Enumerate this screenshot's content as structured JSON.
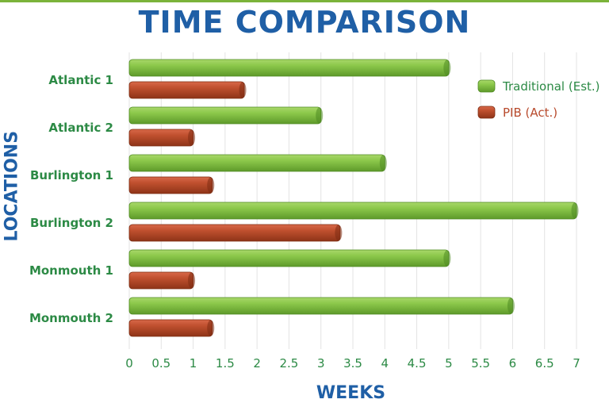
{
  "chart_data": {
    "type": "bar",
    "orientation": "horizontal",
    "title": "TIME COMPARISON",
    "xlabel": "WEEKS",
    "ylabel": "LOCATIONS",
    "categories": [
      "Atlantic 1",
      "Atlantic 2",
      "Burlington 1",
      "Burlington 2",
      "Monmouth 1",
      "Monmouth 2"
    ],
    "series": [
      {
        "name": "Traditional (Est.)",
        "color": "#7cb93c",
        "values": [
          5,
          3,
          4,
          7,
          5,
          6
        ]
      },
      {
        "name": "PIB (Act.)",
        "color": "#b84a2c",
        "values": [
          1.8,
          1,
          1.3,
          3.3,
          1,
          1.3
        ]
      }
    ],
    "xlim": [
      0,
      7
    ],
    "xticks": [
      "0",
      "0.5",
      "1",
      "1.5",
      "2",
      "2.5",
      "3",
      "3.5",
      "4",
      "4.5",
      "5",
      "5.5",
      "6",
      "6.5",
      "7"
    ],
    "grid": "vertical",
    "legend_position": "top-right"
  }
}
